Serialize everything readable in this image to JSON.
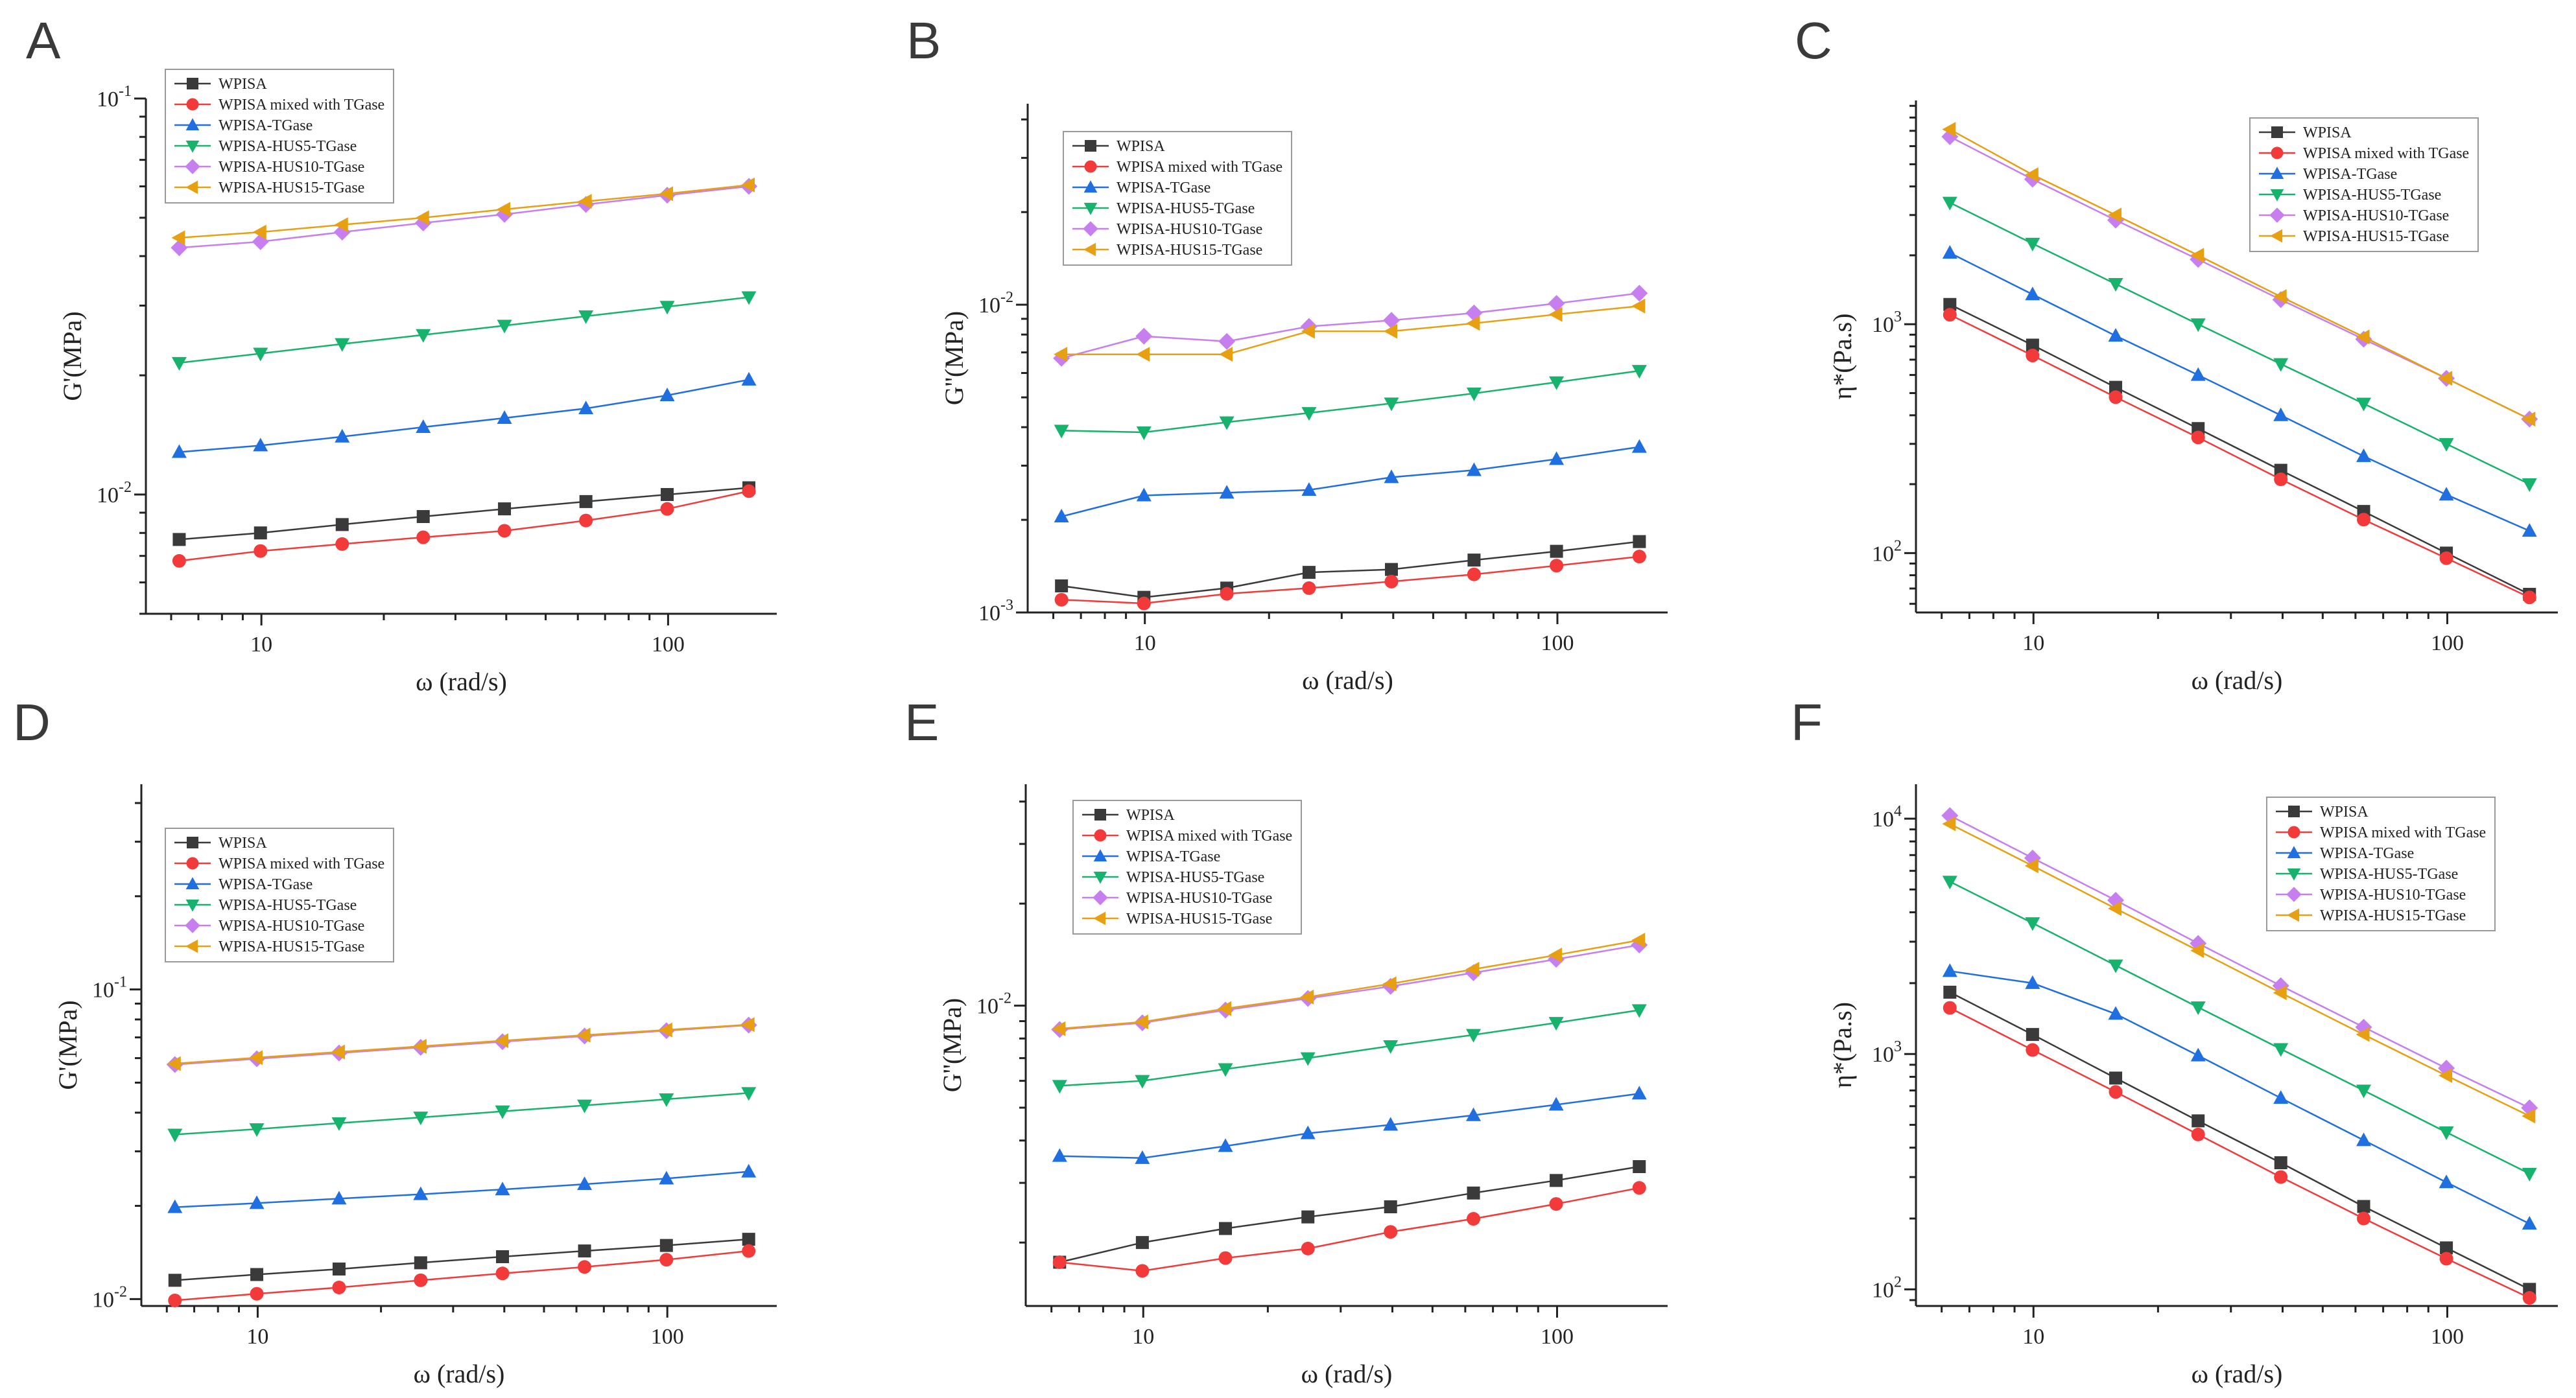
{
  "figure": {
    "legend_entries": [
      "WPISA",
      "WPISA mixed with TGase",
      "WPISA-TGase",
      "WPISA-HUS5-TGase",
      "WPISA-HUS10-TGase",
      "WPISA-HUS15-TGase"
    ],
    "series_colors": [
      "#3a3a3a",
      "#f23a3a",
      "#1f6fe0",
      "#17b26b",
      "#c77ff0",
      "#e6a012"
    ],
    "series_markers": [
      "square",
      "circle",
      "triangle-up",
      "triangle-down",
      "diamond",
      "triangle-left"
    ]
  },
  "chart_data": [
    {
      "label": "A",
      "type": "line",
      "xscale": "log",
      "yscale": "log",
      "xlabel": "ω (rad/s)",
      "ylabel": "G'(MPa)",
      "xlim": [
        5.2,
        185
      ],
      "ylim": [
        0.005,
        0.1
      ],
      "xticks": [
        {
          "v": 10,
          "label": "10"
        },
        {
          "v": 100,
          "label": "100"
        }
      ],
      "yticks": [
        {
          "v": 0.01,
          "base": "10",
          "exp": "-2"
        },
        {
          "v": 0.1,
          "base": "10",
          "exp": "-1"
        }
      ],
      "legend_position": "top-left",
      "x": [
        6.28,
        9.95,
        15.8,
        25,
        39.6,
        62.8,
        99.5,
        158
      ],
      "series": [
        {
          "name": "WPISA",
          "values": [
            0.0077,
            0.008,
            0.0084,
            0.0088,
            0.0092,
            0.0096,
            0.01,
            0.0104
          ]
        },
        {
          "name": "WPISA mixed with TGase",
          "values": [
            0.0068,
            0.0072,
            0.0075,
            0.0078,
            0.0081,
            0.0086,
            0.0092,
            0.0102
          ]
        },
        {
          "name": "WPISA-TGase",
          "values": [
            0.0128,
            0.0133,
            0.014,
            0.0148,
            0.0156,
            0.0165,
            0.0178,
            0.0195
          ]
        },
        {
          "name": "WPISA-HUS5-TGase",
          "values": [
            0.0215,
            0.0227,
            0.024,
            0.0253,
            0.0267,
            0.0282,
            0.0298,
            0.0315
          ]
        },
        {
          "name": "WPISA-HUS10-TGase",
          "values": [
            0.042,
            0.0435,
            0.046,
            0.0485,
            0.051,
            0.054,
            0.057,
            0.06
          ]
        },
        {
          "name": "WPISA-HUS15-TGase",
          "values": [
            0.0445,
            0.046,
            0.048,
            0.05,
            0.0525,
            0.055,
            0.0575,
            0.0605
          ]
        }
      ]
    },
    {
      "label": "B",
      "type": "line",
      "xscale": "log",
      "yscale": "log",
      "xlabel": "ω (rad/s)",
      "ylabel": "G''(MPa)",
      "xlim": [
        5.2,
        185
      ],
      "ylim": [
        0.001,
        0.045
      ],
      "xticks": [
        {
          "v": 10,
          "label": "10"
        },
        {
          "v": 100,
          "label": "100"
        }
      ],
      "yticks": [
        {
          "v": 0.001,
          "base": "10",
          "exp": "-3"
        },
        {
          "v": 0.01,
          "base": "10",
          "exp": "-2"
        }
      ],
      "legend_position": "top-left",
      "x": [
        6.28,
        9.95,
        15.8,
        25,
        39.6,
        62.8,
        99.5,
        158
      ],
      "series": [
        {
          "name": "WPISA",
          "values": [
            0.00122,
            0.00112,
            0.0012,
            0.00135,
            0.00138,
            0.00148,
            0.00158,
            0.0017
          ]
        },
        {
          "name": "WPISA mixed with TGase",
          "values": [
            0.0011,
            0.00107,
            0.00115,
            0.0012,
            0.00126,
            0.00133,
            0.00142,
            0.00152
          ]
        },
        {
          "name": "WPISA-TGase",
          "values": [
            0.00205,
            0.0024,
            0.00245,
            0.0025,
            0.00275,
            0.0029,
            0.00315,
            0.00345
          ]
        },
        {
          "name": "WPISA-HUS5-TGase",
          "values": [
            0.0039,
            0.00385,
            0.00415,
            0.00445,
            0.00478,
            0.00515,
            0.0056,
            0.0061
          ]
        },
        {
          "name": "WPISA-HUS10-TGase",
          "values": [
            0.0067,
            0.0079,
            0.0076,
            0.0085,
            0.0089,
            0.0094,
            0.0101,
            0.0109
          ]
        },
        {
          "name": "WPISA-HUS15-TGase",
          "values": [
            0.0069,
            0.0069,
            0.0069,
            0.0082,
            0.0082,
            0.0087,
            0.0093,
            0.0099
          ]
        }
      ]
    },
    {
      "label": "C",
      "type": "line",
      "xscale": "log",
      "yscale": "log",
      "xlabel": "ω (rad/s)",
      "ylabel": "η*(Pa.s)",
      "xlim": [
        5.2,
        185
      ],
      "ylim": [
        55,
        9500
      ],
      "xticks": [
        {
          "v": 10,
          "label": "10"
        },
        {
          "v": 100,
          "label": "100"
        }
      ],
      "yticks": [
        {
          "v": 100,
          "base": "10",
          "exp": "2"
        },
        {
          "v": 1000,
          "base": "10",
          "exp": "3"
        }
      ],
      "legend_position": "top-right",
      "x": [
        6.28,
        9.95,
        15.8,
        25,
        39.6,
        62.8,
        99.5,
        158
      ],
      "series": [
        {
          "name": "WPISA",
          "values": [
            1220,
            810,
            530,
            350,
            230,
            152,
            100,
            66
          ]
        },
        {
          "name": "WPISA mixed with TGase",
          "values": [
            1100,
            730,
            480,
            320,
            210,
            140,
            95,
            64
          ]
        },
        {
          "name": "WPISA-TGase",
          "values": [
            2050,
            1350,
            890,
            600,
            400,
            265,
            180,
            125
          ]
        },
        {
          "name": "WPISA-HUS5-TGase",
          "values": [
            3400,
            2250,
            1500,
            1000,
            670,
            450,
            300,
            200
          ]
        },
        {
          "name": "WPISA-HUS10-TGase",
          "values": [
            6600,
            4300,
            2850,
            1920,
            1280,
            860,
            580,
            385
          ]
        },
        {
          "name": "WPISA-HUS15-TGase",
          "values": [
            7100,
            4500,
            3000,
            2000,
            1320,
            880,
            580,
            385
          ]
        }
      ]
    },
    {
      "label": "D",
      "type": "line",
      "xscale": "log",
      "yscale": "log",
      "xlabel": "ω (rad/s)",
      "ylabel": "G'(MPa)",
      "xlim": [
        5.2,
        185
      ],
      "ylim": [
        0.0095,
        0.46
      ],
      "xticks": [
        {
          "v": 10,
          "label": "10"
        },
        {
          "v": 100,
          "label": "100"
        }
      ],
      "yticks": [
        {
          "v": 0.01,
          "base": "10",
          "exp": "-2"
        },
        {
          "v": 0.1,
          "base": "10",
          "exp": "-1"
        }
      ],
      "legend_position": "top-left",
      "x": [
        6.28,
        9.95,
        15.8,
        25,
        39.6,
        62.8,
        99.5,
        158
      ],
      "series": [
        {
          "name": "WPISA",
          "values": [
            0.0115,
            0.012,
            0.0125,
            0.0131,
            0.0137,
            0.0143,
            0.0149,
            0.0156
          ]
        },
        {
          "name": "WPISA mixed with TGase",
          "values": [
            0.0099,
            0.0104,
            0.0109,
            0.0115,
            0.0121,
            0.0127,
            0.0134,
            0.0143
          ]
        },
        {
          "name": "WPISA-TGase",
          "values": [
            0.0198,
            0.0204,
            0.0211,
            0.0218,
            0.0226,
            0.0235,
            0.0245,
            0.0258
          ]
        },
        {
          "name": "WPISA-HUS5-TGase",
          "values": [
            0.034,
            0.0354,
            0.037,
            0.0386,
            0.0404,
            0.0422,
            0.0442,
            0.0463
          ]
        },
        {
          "name": "WPISA-HUS10-TGase",
          "values": [
            0.0572,
            0.0597,
            0.0623,
            0.065,
            0.0678,
            0.0707,
            0.0736,
            0.0767
          ]
        },
        {
          "name": "WPISA-HUS15-TGase",
          "values": [
            0.0576,
            0.0602,
            0.0628,
            0.0655,
            0.0683,
            0.0712,
            0.074,
            0.077
          ]
        }
      ]
    },
    {
      "label": "E",
      "type": "line",
      "xscale": "log",
      "yscale": "log",
      "xlabel": "ω (rad/s)",
      "ylabel": "G''(MPa)",
      "xlim": [
        5.2,
        185
      ],
      "ylim": [
        0.0013,
        0.045
      ],
      "xticks": [
        {
          "v": 10,
          "label": "10"
        },
        {
          "v": 100,
          "label": "100"
        }
      ],
      "yticks": [
        {
          "v": 0.01,
          "base": "10",
          "exp": "-2"
        }
      ],
      "legend_position": "top-left",
      "x": [
        6.28,
        9.95,
        15.8,
        25,
        39.6,
        62.8,
        99.5,
        158
      ],
      "series": [
        {
          "name": "WPISA",
          "values": [
            0.00175,
            0.002,
            0.0022,
            0.00238,
            0.00255,
            0.0028,
            0.00305,
            0.00335
          ]
        },
        {
          "name": "WPISA mixed with TGase",
          "values": [
            0.00175,
            0.00165,
            0.0018,
            0.00192,
            0.00215,
            0.00235,
            0.0026,
            0.0029
          ]
        },
        {
          "name": "WPISA-TGase",
          "values": [
            0.0036,
            0.00355,
            0.00385,
            0.0042,
            0.00445,
            0.00475,
            0.0051,
            0.0055
          ]
        },
        {
          "name": "WPISA-HUS5-TGase",
          "values": [
            0.0058,
            0.006,
            0.0065,
            0.007,
            0.0076,
            0.0082,
            0.0089,
            0.0097
          ]
        },
        {
          "name": "WPISA-HUS10-TGase",
          "values": [
            0.0085,
            0.0089,
            0.0097,
            0.0105,
            0.0114,
            0.0125,
            0.0137,
            0.0151
          ]
        },
        {
          "name": "WPISA-HUS15-TGase",
          "values": [
            0.00855,
            0.00895,
            0.0098,
            0.0106,
            0.0116,
            0.0128,
            0.0141,
            0.0156
          ]
        }
      ]
    },
    {
      "label": "F",
      "type": "line",
      "xscale": "log",
      "yscale": "log",
      "xlabel": "ω (rad/s)",
      "ylabel": "η*(Pa.s)",
      "xlim": [
        5.2,
        185
      ],
      "ylim": [
        85,
        14000
      ],
      "xticks": [
        {
          "v": 10,
          "label": "10"
        },
        {
          "v": 100,
          "label": "100"
        }
      ],
      "yticks": [
        {
          "v": 100,
          "base": "10",
          "exp": "2"
        },
        {
          "v": 1000,
          "base": "10",
          "exp": "3"
        },
        {
          "v": 10000,
          "base": "10",
          "exp": "4"
        }
      ],
      "legend_position": "top-right",
      "x": [
        6.28,
        9.95,
        15.8,
        25,
        39.6,
        62.8,
        99.5,
        158
      ],
      "series": [
        {
          "name": "WPISA",
          "values": [
            1830,
            1210,
            790,
            520,
            345,
            225,
            150,
            100
          ]
        },
        {
          "name": "WPISA mixed with TGase",
          "values": [
            1570,
            1040,
            690,
            455,
            300,
            200,
            135,
            92
          ]
        },
        {
          "name": "WPISA-TGase",
          "values": [
            2250,
            2000,
            1480,
            985,
            650,
            430,
            285,
            190
          ]
        },
        {
          "name": "WPISA-HUS5-TGase",
          "values": [
            5400,
            3600,
            2380,
            1580,
            1050,
            700,
            465,
            310
          ]
        },
        {
          "name": "WPISA-HUS10-TGase",
          "values": [
            10300,
            6800,
            4500,
            2950,
            1950,
            1300,
            870,
            590
          ]
        },
        {
          "name": "WPISA-HUS15-TGase",
          "values": [
            9500,
            6300,
            4150,
            2750,
            1820,
            1210,
            810,
            545
          ]
        }
      ]
    }
  ]
}
